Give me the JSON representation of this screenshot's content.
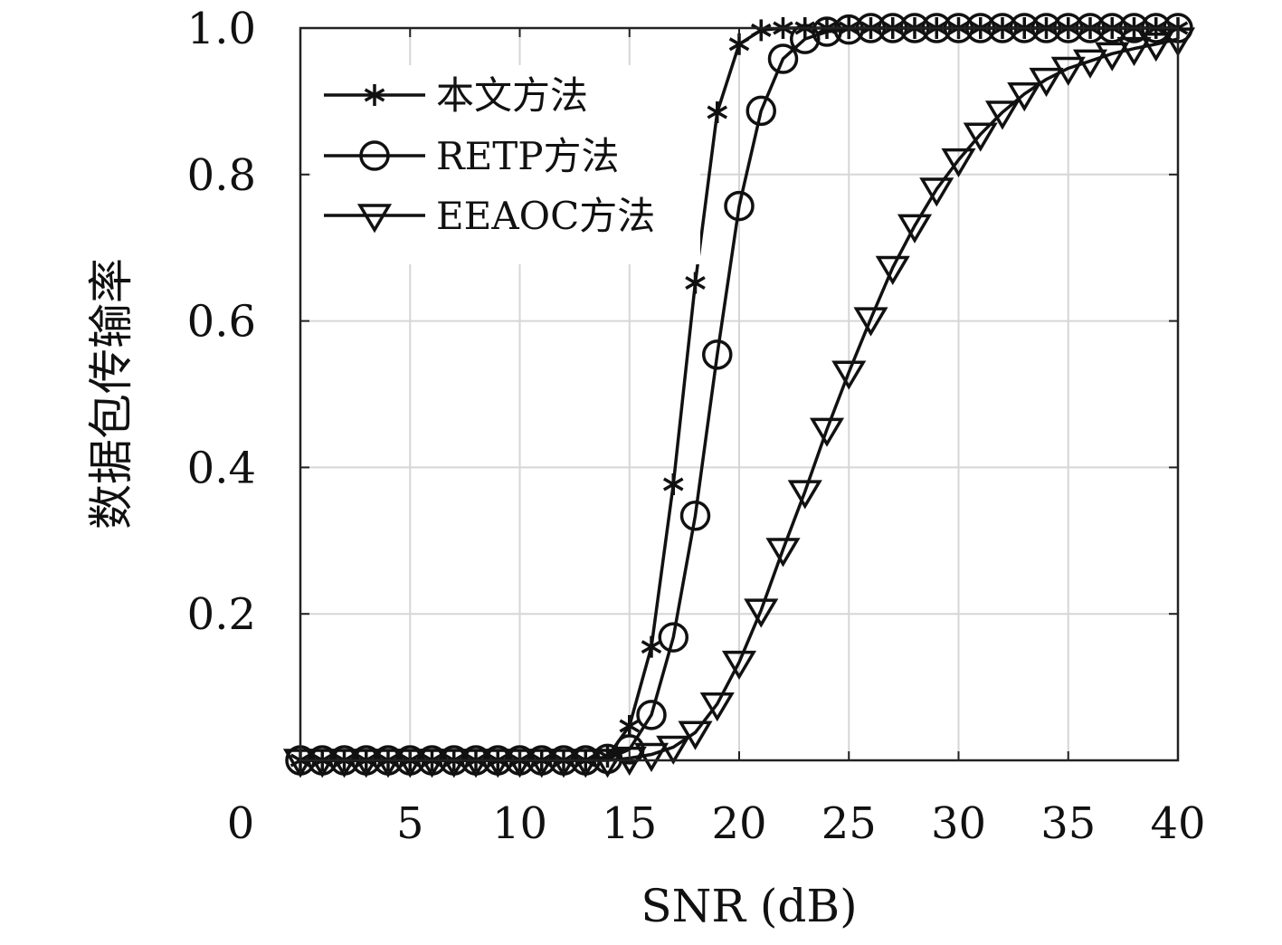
{
  "chart_data": {
    "type": "line",
    "title": "",
    "xlabel": "SNR (dB)",
    "ylabel": "数据包传输率",
    "xlim": [
      0,
      40
    ],
    "ylim": [
      0,
      1.0
    ],
    "x_ticks": [
      "0",
      "5",
      "10",
      "15",
      "20",
      "25",
      "30",
      "35",
      "40"
    ],
    "y_ticks": [
      "0.2",
      "0.4",
      "0.6",
      "0.8",
      "1.0"
    ],
    "grid": true,
    "legend_position": "top-left",
    "x": [
      0,
      1,
      2,
      3,
      4,
      5,
      6,
      7,
      8,
      9,
      10,
      11,
      12,
      13,
      14,
      15,
      16,
      17,
      18,
      19,
      20,
      21,
      22,
      23,
      24,
      25,
      26,
      27,
      28,
      29,
      30,
      31,
      32,
      33,
      34,
      35,
      36,
      37,
      38,
      39,
      40
    ],
    "series": [
      {
        "name": "本文方法",
        "marker": "asterisk",
        "values": [
          0,
          0,
          0,
          0,
          0,
          0,
          0,
          0,
          0,
          0,
          0,
          0,
          0,
          0,
          0.005,
          0.047,
          0.155,
          0.377,
          0.652,
          0.885,
          0.978,
          0.997,
          1,
          1,
          1,
          1,
          1,
          1,
          1,
          1,
          1,
          1,
          1,
          1,
          1,
          1,
          1,
          1,
          1,
          1,
          1
        ]
      },
      {
        "name": "RETP方法",
        "marker": "circle",
        "values": [
          0,
          0,
          0,
          0,
          0,
          0,
          0,
          0,
          0,
          0,
          0,
          0,
          0,
          0,
          0.002,
          0.015,
          0.062,
          0.168,
          0.334,
          0.554,
          0.757,
          0.887,
          0.958,
          0.985,
          0.995,
          0.998,
          1,
          1,
          1,
          1,
          1,
          1,
          1,
          1,
          1,
          1,
          1,
          1,
          1,
          1,
          1
        ]
      },
      {
        "name": "EEAOC方法",
        "marker": "triangle-down",
        "values": [
          0,
          0,
          0,
          0,
          0,
          0,
          0,
          0,
          0,
          0,
          0,
          0,
          0,
          0,
          0,
          0.003,
          0.008,
          0.018,
          0.038,
          0.077,
          0.134,
          0.205,
          0.288,
          0.367,
          0.452,
          0.53,
          0.603,
          0.673,
          0.73,
          0.78,
          0.82,
          0.855,
          0.885,
          0.91,
          0.93,
          0.945,
          0.955,
          0.965,
          0.972,
          0.978,
          0.985
        ]
      }
    ]
  }
}
